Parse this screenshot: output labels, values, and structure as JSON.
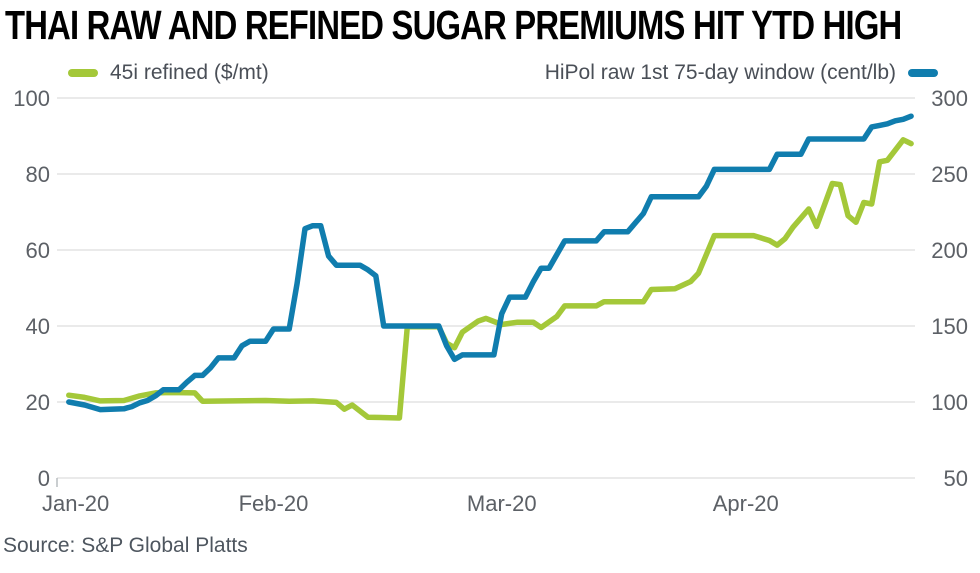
{
  "title": "THAI RAW AND REFINED SUGAR PREMIUMS HIT YTD HIGH",
  "source": "Source: S&P Global Platts",
  "colors": {
    "refined_green": "#A4C839",
    "raw_blue": "#107DAE",
    "grid": "#E3E3E3",
    "axis_text": "#5C6066",
    "title_text": "#000000"
  },
  "legend": {
    "position": "top",
    "left_item": {
      "label": "45i refined ($/mt)"
    },
    "right_item": {
      "label": "HiPol raw 1st 75-day window (cent/lb)"
    }
  },
  "chart_data": {
    "type": "line",
    "title": "THAI RAW AND REFINED SUGAR PREMIUMS HIT YTD HIGH",
    "x_unit": "days since 2020-01-01",
    "x_domain": [
      3.5,
      112.5
    ],
    "grid": "horizontal",
    "x_ticks": [
      {
        "day": 0,
        "label": "Jan-20",
        "align": "left"
      },
      {
        "day": 31,
        "label": "Feb-20",
        "align": "center"
      },
      {
        "day": 60,
        "label": "Mar-20",
        "align": "center"
      },
      {
        "day": 91,
        "label": "Apr-20",
        "align": "center"
      }
    ],
    "left_axis": {
      "label": "45i refined ($/mt)",
      "range": [
        0,
        100
      ],
      "ticks": [
        0,
        20,
        40,
        60,
        80,
        100
      ]
    },
    "right_axis": {
      "label": "HiPol raw 1st 75-day window (cent/lb)",
      "range": [
        50,
        300
      ],
      "ticks": [
        50,
        100,
        150,
        200,
        250,
        300
      ]
    },
    "series": [
      {
        "name": "45i refined ($/mt)",
        "axis": "left",
        "color_key": "refined_green",
        "points": [
          [
            5,
            21.8
          ],
          [
            7,
            21.2
          ],
          [
            9,
            20.3
          ],
          [
            12,
            20.4
          ],
          [
            14,
            21.6
          ],
          [
            16,
            22.4
          ],
          [
            18,
            22.5
          ],
          [
            21,
            22.4
          ],
          [
            22,
            20.2
          ],
          [
            26,
            20.3
          ],
          [
            30,
            20.4
          ],
          [
            33,
            20.2
          ],
          [
            36,
            20.3
          ],
          [
            39,
            19.9
          ],
          [
            40,
            18.1
          ],
          [
            41,
            19.2
          ],
          [
            43,
            16.0
          ],
          [
            47,
            15.8
          ],
          [
            48,
            39.8
          ],
          [
            52,
            39.8
          ],
          [
            53,
            35.5
          ],
          [
            54,
            34.3
          ],
          [
            55,
            38.4
          ],
          [
            57,
            41.3
          ],
          [
            58,
            42.0
          ],
          [
            60,
            40.4
          ],
          [
            62,
            41.0
          ],
          [
            64,
            41.0
          ],
          [
            65,
            39.6
          ],
          [
            67,
            42.5
          ],
          [
            68,
            45.3
          ],
          [
            72,
            45.3
          ],
          [
            73,
            46.4
          ],
          [
            78,
            46.4
          ],
          [
            79,
            49.6
          ],
          [
            82,
            49.8
          ],
          [
            84,
            51.7
          ],
          [
            85,
            53.9
          ],
          [
            87,
            63.8
          ],
          [
            92,
            63.8
          ],
          [
            94,
            62.5
          ],
          [
            95,
            61.3
          ],
          [
            96,
            63.0
          ],
          [
            97,
            66.0
          ],
          [
            99,
            70.8
          ],
          [
            100,
            66.2
          ],
          [
            102,
            77.5
          ],
          [
            103,
            77.2
          ],
          [
            104,
            69.0
          ],
          [
            105,
            67.3
          ],
          [
            106,
            72.5
          ],
          [
            107,
            72.1
          ],
          [
            108,
            83.2
          ],
          [
            109,
            83.6
          ],
          [
            111,
            89.0
          ],
          [
            112,
            88.0
          ]
        ]
      },
      {
        "name": "HiPol raw 1st 75-day window (cent/lb)",
        "axis": "right",
        "color_key": "raw_blue",
        "points": [
          [
            5,
            100
          ],
          [
            7,
            98
          ],
          [
            9,
            95
          ],
          [
            12,
            95.5
          ],
          [
            13,
            97
          ],
          [
            14,
            99.5
          ],
          [
            15,
            101
          ],
          [
            16,
            104
          ],
          [
            17,
            108
          ],
          [
            19,
            108
          ],
          [
            20,
            113
          ],
          [
            21,
            117.5
          ],
          [
            22,
            117.5
          ],
          [
            23,
            122.5
          ],
          [
            24,
            129
          ],
          [
            26,
            129
          ],
          [
            27,
            137
          ],
          [
            28,
            140
          ],
          [
            30,
            140
          ],
          [
            31,
            148
          ],
          [
            33,
            148
          ],
          [
            34,
            178
          ],
          [
            35,
            214
          ],
          [
            36,
            216
          ],
          [
            37,
            216
          ],
          [
            38,
            196
          ],
          [
            39,
            190
          ],
          [
            42,
            190
          ],
          [
            43,
            187
          ],
          [
            44,
            183
          ],
          [
            45,
            150
          ],
          [
            52,
            150
          ],
          [
            53,
            137
          ],
          [
            54,
            128
          ],
          [
            55,
            131
          ],
          [
            59,
            131
          ],
          [
            60,
            158
          ],
          [
            61,
            169
          ],
          [
            63,
            169
          ],
          [
            64,
            179
          ],
          [
            65,
            188
          ],
          [
            66,
            188
          ],
          [
            67,
            197
          ],
          [
            68,
            206
          ],
          [
            72,
            206
          ],
          [
            73,
            212
          ],
          [
            76,
            212
          ],
          [
            78,
            224
          ],
          [
            79,
            235
          ],
          [
            85,
            235
          ],
          [
            86,
            242
          ],
          [
            87,
            253
          ],
          [
            94,
            253
          ],
          [
            95,
            263
          ],
          [
            98,
            263
          ],
          [
            99,
            273
          ],
          [
            106,
            273
          ],
          [
            107,
            281
          ],
          [
            108,
            282
          ],
          [
            109,
            283
          ],
          [
            110,
            285
          ],
          [
            111,
            286
          ],
          [
            112,
            288
          ]
        ]
      }
    ]
  }
}
